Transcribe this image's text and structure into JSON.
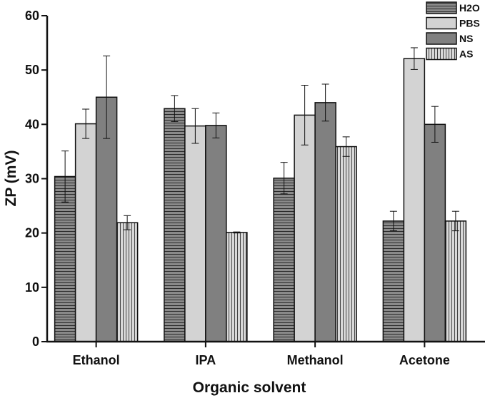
{
  "chart_data": {
    "type": "bar",
    "title": "",
    "xlabel": "Organic solvent",
    "ylabel": "ZP (mV)",
    "ylim": [
      0,
      60
    ],
    "yticks": [
      0,
      10,
      20,
      30,
      40,
      50,
      60
    ],
    "categories": [
      "Ethanol",
      "IPA",
      "Methanol",
      "Acetone"
    ],
    "series": [
      {
        "name": "H2O",
        "pattern": "horizontal-lines",
        "color": "#808080",
        "values": [
          30.4,
          42.9,
          30.1,
          22.2
        ],
        "errors": [
          4.7,
          2.4,
          2.9,
          1.8
        ]
      },
      {
        "name": "PBS",
        "pattern": "solid",
        "color": "#d3d3d3",
        "values": [
          40.1,
          39.7,
          41.7,
          52.1
        ],
        "errors": [
          2.7,
          3.2,
          5.5,
          2.0
        ]
      },
      {
        "name": "NS",
        "pattern": "solid",
        "color": "#808080",
        "values": [
          45.0,
          39.8,
          44.0,
          40.0
        ],
        "errors": [
          7.6,
          2.3,
          3.4,
          3.3
        ]
      },
      {
        "name": "AS",
        "pattern": "vertical-lines",
        "color": "#d3d3d3",
        "values": [
          21.9,
          20.1,
          35.9,
          22.2
        ],
        "errors": [
          1.3,
          0.1,
          1.8,
          1.8
        ]
      }
    ],
    "legend_position": "top-right"
  }
}
